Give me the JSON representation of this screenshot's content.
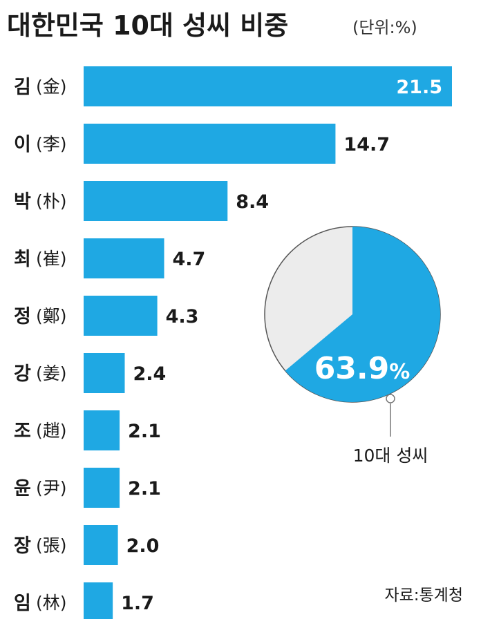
{
  "header": {
    "title": "대한민국 10대 성씨 비중",
    "unit": "(단위:%)"
  },
  "colors": {
    "bar": "#1fa8e3",
    "pie_highlight": "#1fa8e3",
    "pie_rest": "#ececec",
    "pie_stroke": "#555555",
    "text": "#1a1a1a"
  },
  "chart_data": [
    {
      "type": "bar",
      "orientation": "horizontal",
      "title": "대한민국 10대 성씨 비중",
      "unit": "(단위:%)",
      "categories": [
        "김(金)",
        "이(李)",
        "박(朴)",
        "최(崔)",
        "정(鄭)",
        "강(姜)",
        "조(趙)",
        "윤(尹)",
        "장(張)",
        "임(林)"
      ],
      "category_parts": [
        {
          "name": "김",
          "hanja": "(金)"
        },
        {
          "name": "이",
          "hanja": "(李)"
        },
        {
          "name": "박",
          "hanja": "(朴)"
        },
        {
          "name": "최",
          "hanja": "(崔)"
        },
        {
          "name": "정",
          "hanja": "(鄭)"
        },
        {
          "name": "강",
          "hanja": "(姜)"
        },
        {
          "name": "조",
          "hanja": "(趙)"
        },
        {
          "name": "윤",
          "hanja": "(尹)"
        },
        {
          "name": "장",
          "hanja": "(張)"
        },
        {
          "name": "임",
          "hanja": "(林)"
        }
      ],
      "values": [
        21.5,
        14.7,
        8.4,
        4.7,
        4.3,
        2.4,
        2.1,
        2.1,
        2.0,
        1.7
      ],
      "value_labels": [
        "21.5",
        "14.7",
        "8.4",
        "4.7",
        "4.3",
        "2.4",
        "2.1",
        "2.1",
        "2.0",
        "1.7"
      ],
      "xlim": [
        0,
        21.5
      ],
      "grid": false,
      "legend": "none"
    },
    {
      "type": "pie",
      "slices": [
        {
          "label": "10대 성씨",
          "value": 63.9
        },
        {
          "label": "",
          "value": 36.1
        }
      ],
      "value_label": "63.9",
      "value_unit": "%",
      "caption": "10대 성씨"
    }
  ],
  "footer": {
    "source": "자료:통계청"
  }
}
